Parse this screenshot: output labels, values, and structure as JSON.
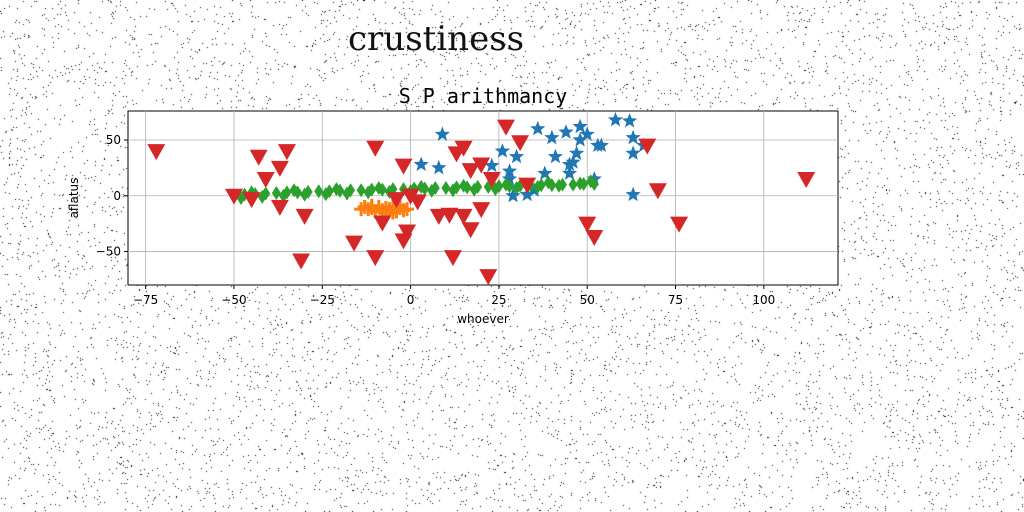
{
  "page": {
    "title": "crustiness"
  },
  "chart_data": {
    "type": "scatter",
    "title": "S P arithmancy",
    "xlabel": "whoever",
    "ylabel": "aflatus",
    "xlim": [
      -80,
      121
    ],
    "ylim": [
      -80,
      76
    ],
    "xticks": [
      -75,
      -50,
      -25,
      0,
      25,
      50,
      75,
      100
    ],
    "yticks": [
      -50,
      0,
      50
    ],
    "grid": true,
    "colors": {
      "blue": "#1f77b4",
      "orange": "#ff7f0e",
      "green": "#2ca02c",
      "red": "#d62728"
    },
    "series": [
      {
        "marker": "star",
        "color": "#1f77b4",
        "points": [
          [
            9,
            55
          ],
          [
            3,
            28
          ],
          [
            8,
            25
          ],
          [
            23,
            27
          ],
          [
            26,
            40
          ],
          [
            28,
            15
          ],
          [
            28,
            22
          ],
          [
            29,
            0
          ],
          [
            30,
            35
          ],
          [
            33,
            1
          ],
          [
            35,
            5
          ],
          [
            36,
            60
          ],
          [
            38,
            20
          ],
          [
            40,
            52
          ],
          [
            41,
            35
          ],
          [
            44,
            57
          ],
          [
            45,
            28
          ],
          [
            45,
            20
          ],
          [
            46,
            30
          ],
          [
            47,
            38
          ],
          [
            48,
            50
          ],
          [
            48,
            62
          ],
          [
            50,
            55
          ],
          [
            52,
            15
          ],
          [
            53,
            45
          ],
          [
            54,
            45
          ],
          [
            58,
            68
          ],
          [
            62,
            67
          ],
          [
            63,
            52
          ],
          [
            63,
            38
          ],
          [
            63,
            1
          ],
          [
            66,
            45
          ]
        ]
      },
      {
        "marker": "plus",
        "color": "#ff7f0e",
        "points": [
          [
            -14,
            -12
          ],
          [
            -13,
            -10
          ],
          [
            -12,
            -12
          ],
          [
            -11,
            -11
          ],
          [
            -10,
            -14
          ],
          [
            -9,
            -10
          ],
          [
            -8,
            -13
          ],
          [
            -7,
            -11
          ],
          [
            -6,
            -12
          ],
          [
            -5,
            -10
          ],
          [
            -4,
            -14
          ],
          [
            -3,
            -11
          ],
          [
            -2,
            -13
          ],
          [
            -1,
            -12
          ],
          [
            -11,
            -9
          ],
          [
            -7,
            -16
          ],
          [
            -5,
            -15
          ],
          [
            -3,
            -9
          ]
        ]
      },
      {
        "marker": "diamond",
        "color": "#2ca02c",
        "points": [
          [
            -50,
            0
          ],
          [
            -47,
            1
          ],
          [
            -44,
            1.5
          ],
          [
            -41,
            2
          ],
          [
            -38,
            2.5
          ],
          [
            -35,
            3
          ],
          [
            -32,
            3
          ],
          [
            -29,
            3.5
          ],
          [
            -26,
            4
          ],
          [
            -23,
            4
          ],
          [
            -20,
            4.5
          ],
          [
            -17,
            5
          ],
          [
            -14,
            5
          ],
          [
            -11,
            5.5
          ],
          [
            -8,
            5.5
          ],
          [
            -5,
            6
          ],
          [
            -2,
            6
          ],
          [
            1,
            6.5
          ],
          [
            4,
            6.5
          ],
          [
            7,
            7
          ],
          [
            10,
            7
          ],
          [
            13,
            7.5
          ],
          [
            16,
            7.5
          ],
          [
            19,
            8
          ],
          [
            22,
            8
          ],
          [
            25,
            8.5
          ],
          [
            28,
            8.5
          ],
          [
            31,
            9
          ],
          [
            34,
            9
          ],
          [
            37,
            9.5
          ],
          [
            40,
            9.5
          ],
          [
            43,
            10
          ],
          [
            46,
            10
          ],
          [
            49,
            10.5
          ],
          [
            52,
            10.5
          ],
          [
            -48,
            -2
          ],
          [
            -42,
            -1
          ],
          [
            -36,
            0
          ],
          [
            -30,
            1
          ],
          [
            -24,
            1.5
          ],
          [
            -18,
            2
          ],
          [
            -12,
            3
          ],
          [
            -6,
            3.5
          ],
          [
            0,
            4
          ],
          [
            6,
            4.5
          ],
          [
            12,
            5
          ],
          [
            18,
            5.5
          ],
          [
            24,
            6
          ],
          [
            30,
            7
          ],
          [
            36,
            8
          ],
          [
            42,
            9
          ],
          [
            48,
            11
          ],
          [
            -45,
            3
          ],
          [
            -33,
            5
          ],
          [
            -21,
            6
          ],
          [
            -9,
            7
          ],
          [
            3,
            8
          ],
          [
            15,
            9
          ],
          [
            27,
            10
          ],
          [
            39,
            12
          ],
          [
            51,
            13
          ]
        ]
      },
      {
        "marker": "triangle-down",
        "color": "#d62728",
        "points": [
          [
            -72,
            40
          ],
          [
            -50,
            0
          ],
          [
            -45,
            -3
          ],
          [
            -43,
            35
          ],
          [
            -41,
            15
          ],
          [
            -37,
            25
          ],
          [
            -35,
            40
          ],
          [
            -37,
            -10
          ],
          [
            -30,
            -18
          ],
          [
            -31,
            -58
          ],
          [
            -16,
            -42
          ],
          [
            -10,
            43
          ],
          [
            -10,
            -55
          ],
          [
            -8,
            -24
          ],
          [
            -4,
            -3
          ],
          [
            -2,
            -40
          ],
          [
            -1,
            -32
          ],
          [
            -2,
            27
          ],
          [
            0,
            0
          ],
          [
            2,
            -5
          ],
          [
            8,
            -18
          ],
          [
            11,
            -17
          ],
          [
            12,
            -55
          ],
          [
            13,
            38
          ],
          [
            15,
            43
          ],
          [
            17,
            -30
          ],
          [
            15,
            -18
          ],
          [
            17,
            23
          ],
          [
            20,
            -12
          ],
          [
            20,
            28
          ],
          [
            23,
            15
          ],
          [
            22,
            -72
          ],
          [
            27,
            62
          ],
          [
            31,
            48
          ],
          [
            33,
            10
          ],
          [
            50,
            -25
          ],
          [
            52,
            -37
          ],
          [
            67,
            45
          ],
          [
            70,
            5
          ],
          [
            76,
            -25
          ],
          [
            112,
            15
          ]
        ]
      }
    ]
  }
}
